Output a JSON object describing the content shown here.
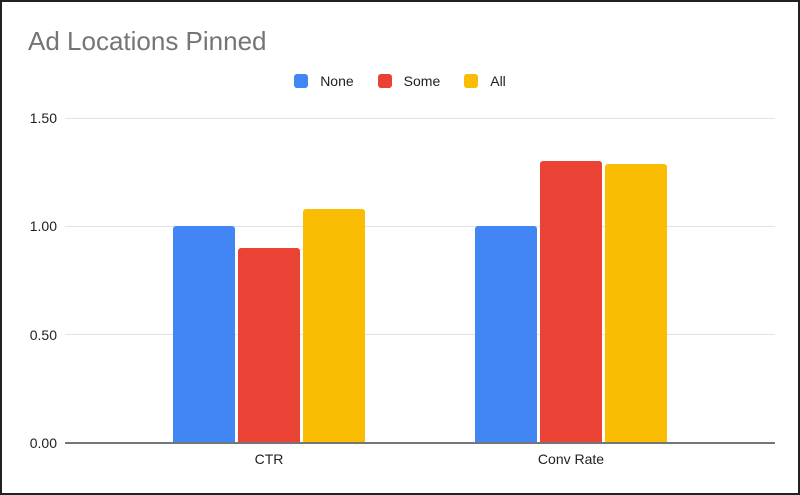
{
  "title": "Ad Locations Pinned",
  "chart_data": {
    "type": "bar",
    "categories": [
      "CTR",
      "Conv Rate"
    ],
    "series": [
      {
        "name": "None",
        "color": "#4285F4",
        "values": [
          1.0,
          1.0
        ]
      },
      {
        "name": "Some",
        "color": "#EA4335",
        "values": [
          0.9,
          1.3
        ]
      },
      {
        "name": "All",
        "color": "#FBBC04",
        "values": [
          1.08,
          1.29
        ]
      }
    ],
    "title": "Ad Locations Pinned",
    "xlabel": "",
    "ylabel": "",
    "ylim": [
      0,
      1.5
    ],
    "yticks": [
      0,
      0.5,
      1.0,
      1.5
    ],
    "ytick_labels": [
      "0.00",
      "0.50",
      "1.00",
      "1.50"
    ],
    "grid": true,
    "legend_position": "top"
  },
  "colors": {
    "title_text": "#757575",
    "axis_text": "#202124",
    "gridline": "#e3e3e3",
    "baseline": "#757575",
    "background": "#ffffff",
    "border": "#212121"
  }
}
